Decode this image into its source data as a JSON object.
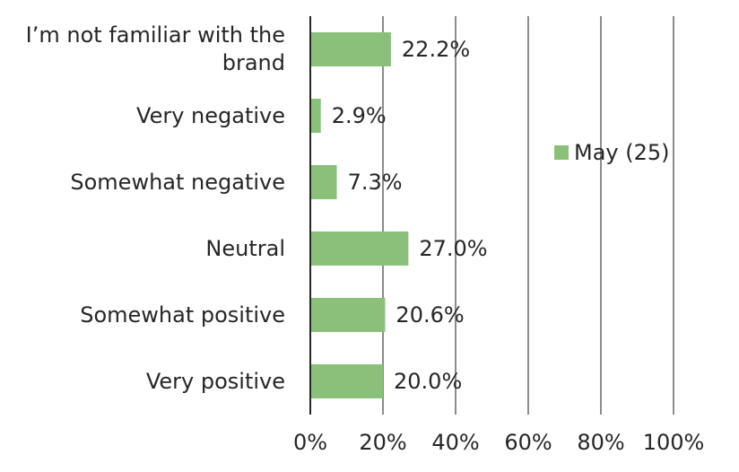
{
  "chart_data": {
    "type": "bar",
    "orientation": "horizontal",
    "categories": [
      "I’m not familiar with the brand",
      "Very negative",
      "Somewhat negative",
      "Neutral",
      "Somewhat positive",
      "Very positive"
    ],
    "series": [
      {
        "name": "May (25)",
        "values": [
          22.2,
          2.9,
          7.3,
          27.0,
          20.6,
          20.0
        ],
        "color": "#8bc07a"
      }
    ],
    "value_labels": [
      "22.2%",
      "2.9%",
      "7.3%",
      "27.0%",
      "20.6%",
      "20.0%"
    ],
    "x_ticks": [
      "0%",
      "20%",
      "40%",
      "60%",
      "80%",
      "100%"
    ],
    "xlim": [
      0,
      100
    ],
    "grid": "vertical",
    "legend_position": "right",
    "title": "",
    "xlabel": "",
    "ylabel": ""
  }
}
